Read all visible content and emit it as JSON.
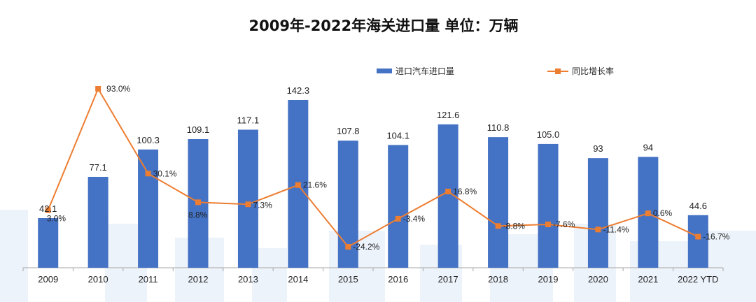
{
  "chart_data": {
    "type": "bar",
    "title": "2009年-2022年海关进口量  单位：万辆",
    "categories": [
      "2009",
      "2010",
      "2011",
      "2012",
      "2013",
      "2014",
      "2015",
      "2016",
      "2017",
      "2018",
      "2019",
      "2020",
      "2021",
      "2022 YTD"
    ],
    "series": [
      {
        "name": "进口汽车进口量",
        "type": "bar",
        "axis": "left",
        "values": [
          42.1,
          77.1,
          100.3,
          109.1,
          117.1,
          142.3,
          107.8,
          104.1,
          121.6,
          110.8,
          105.0,
          93,
          94,
          44.6
        ],
        "labels": [
          "42.1",
          "77.1",
          "100.3",
          "109.1",
          "117.1",
          "142.3",
          "107.8",
          "104.1",
          "121.6",
          "110.8",
          "105.0",
          "93",
          "94",
          "44.6"
        ],
        "color": "#4472c4"
      },
      {
        "name": "同比增长率",
        "type": "line",
        "axis": "right",
        "values": [
          3.0,
          93.0,
          30.1,
          8.8,
          7.3,
          21.6,
          -24.2,
          -3.4,
          16.8,
          -8.8,
          -7.6,
          -11.4,
          0.6,
          -16.7
        ],
        "labels": [
          "3.0%",
          "93.0%",
          "30.1%",
          "8.8%",
          "7.3%",
          "21.6%",
          "-24.2%",
          "-3.4%",
          "16.8%",
          "-8.8%",
          "-7.6%",
          "-11.4%",
          "0.6%",
          "-16.7%"
        ],
        "color": "#ed7d31"
      }
    ],
    "ylim_left": [
      0,
      160
    ],
    "ylim_right": [
      -40,
      110
    ],
    "grid": false,
    "legend_position": "top-right"
  }
}
